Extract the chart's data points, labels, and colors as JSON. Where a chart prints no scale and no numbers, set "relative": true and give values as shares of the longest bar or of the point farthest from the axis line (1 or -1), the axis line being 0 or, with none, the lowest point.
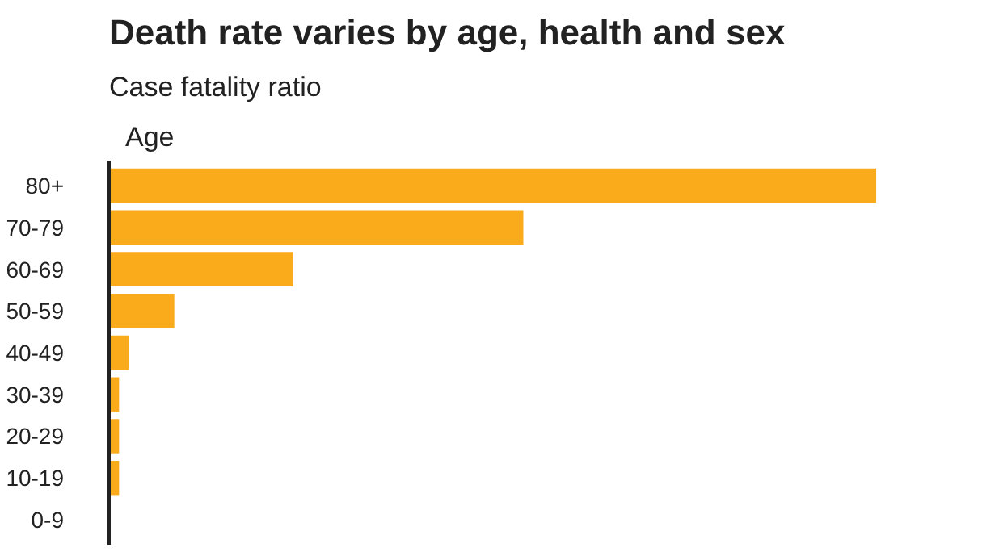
{
  "chart_data": {
    "type": "bar",
    "orientation": "horizontal",
    "relative": true,
    "title": "Death rate varies by age, health and sex",
    "subtitle": "Case fatality ratio",
    "ylabel": "Age",
    "categories": [
      "80+",
      "70-79",
      "60-69",
      "50-59",
      "40-49",
      "30-39",
      "20-29",
      "10-19",
      "0-9"
    ],
    "values": [
      1,
      0.54,
      0.24,
      0.085,
      0.026,
      0.013,
      0.013,
      0.013,
      0
    ],
    "color": "#faab1c"
  }
}
